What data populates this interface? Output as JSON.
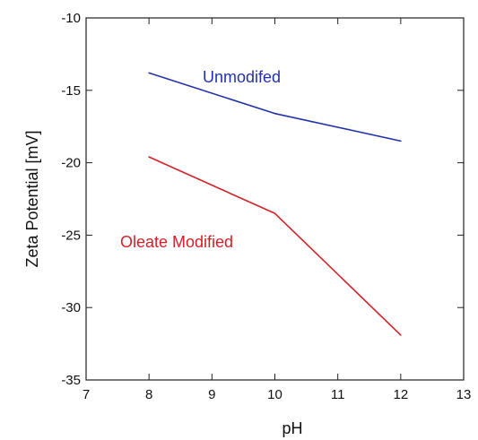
{
  "chart_data": {
    "type": "line",
    "title": "",
    "xlabel": "pH",
    "ylabel": "Zeta Potential [mV]",
    "xlim": [
      7,
      13
    ],
    "ylim": [
      -35,
      -10
    ],
    "xticks": [
      7,
      8,
      9,
      10,
      11,
      12,
      13
    ],
    "yticks": [
      -35,
      -30,
      -25,
      -20,
      -15,
      -10
    ],
    "grid": false,
    "series": [
      {
        "name": "Unmodifed",
        "color": "#2233aa",
        "x": [
          8,
          10,
          12
        ],
        "y": [
          -13.8,
          -16.6,
          -18.5
        ]
      },
      {
        "name": "Oleate Modified",
        "color": "#d42027",
        "x": [
          8,
          10,
          12
        ],
        "y": [
          -19.6,
          -23.5,
          -31.9
        ]
      }
    ]
  }
}
